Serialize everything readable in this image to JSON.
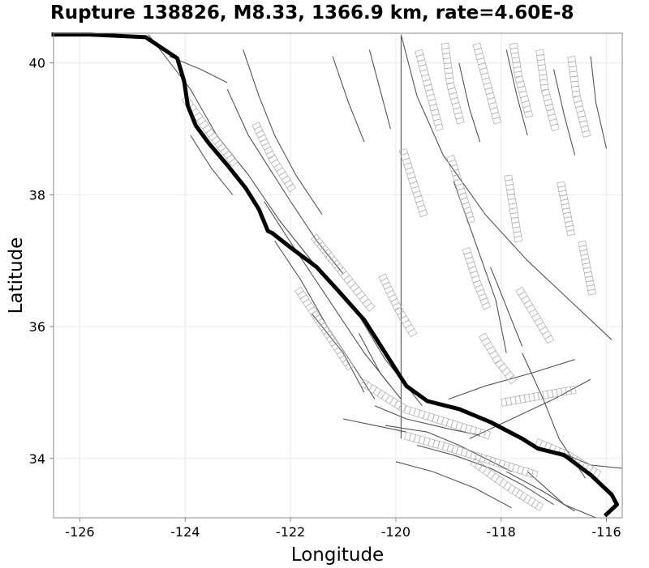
{
  "chart_data": {
    "type": "map",
    "title": "Rupture 138826, M8.33, 1366.9 km, rate=4.60E-8",
    "xlabel": "Longitude",
    "ylabel": "Latitude",
    "xlim": [
      -126.5,
      -115.7
    ],
    "ylim": [
      33.1,
      40.45
    ],
    "x_ticks": [
      -126,
      -124,
      -122,
      -120,
      -118,
      -116
    ],
    "y_ticks": [
      34,
      36,
      38,
      40
    ],
    "grid": true,
    "rupture_color": "#000000",
    "fault_color": "#555555",
    "rupture_trace": [
      [
        -126.5,
        40.43
      ],
      [
        -125.8,
        40.43
      ],
      [
        -124.75,
        40.39
      ],
      [
        -124.15,
        40.07
      ],
      [
        -124.02,
        39.72
      ],
      [
        -123.95,
        39.35
      ],
      [
        -123.8,
        39.05
      ],
      [
        -123.55,
        38.78
      ],
      [
        -123.2,
        38.45
      ],
      [
        -122.85,
        38.1
      ],
      [
        -122.6,
        37.78
      ],
      [
        -122.43,
        37.45
      ],
      [
        -122.35,
        37.42
      ],
      [
        -122.0,
        37.2
      ],
      [
        -121.5,
        36.9
      ],
      [
        -121.1,
        36.55
      ],
      [
        -120.6,
        36.1
      ],
      [
        -120.2,
        35.6
      ],
      [
        -119.8,
        35.1
      ],
      [
        -119.4,
        34.87
      ],
      [
        -118.8,
        34.75
      ],
      [
        -118.2,
        34.55
      ],
      [
        -117.6,
        34.3
      ],
      [
        -117.3,
        34.15
      ],
      [
        -116.8,
        34.05
      ],
      [
        -116.3,
        33.75
      ],
      [
        -115.9,
        33.45
      ],
      [
        -115.8,
        33.3
      ],
      [
        -116.0,
        33.15
      ]
    ],
    "faults": [
      [
        [
          -124.7,
          40.43
        ],
        [
          -123.9,
          39.6
        ],
        [
          -123.4,
          38.9
        ],
        [
          -122.8,
          38.3
        ],
        [
          -122.2,
          37.6
        ],
        [
          -121.6,
          37.0
        ],
        [
          -120.8,
          36.3
        ],
        [
          -120.2,
          35.5
        ],
        [
          -119.5,
          34.8
        ]
      ],
      [
        [
          -123.2,
          39.6
        ],
        [
          -122.8,
          38.9
        ],
        [
          -122.4,
          38.4
        ],
        [
          -122.0,
          37.9
        ],
        [
          -121.5,
          37.3
        ],
        [
          -121.0,
          36.8
        ]
      ],
      [
        [
          -122.9,
          40.2
        ],
        [
          -122.6,
          39.5
        ],
        [
          -122.3,
          38.9
        ],
        [
          -121.9,
          38.3
        ],
        [
          -121.4,
          37.7
        ]
      ],
      [
        [
          -122.5,
          37.9
        ],
        [
          -122.1,
          37.4
        ],
        [
          -121.6,
          36.8
        ],
        [
          -121.1,
          36.2
        ],
        [
          -120.6,
          35.6
        ],
        [
          -120.1,
          35.1
        ]
      ],
      [
        [
          -122.3,
          37.3
        ],
        [
          -121.8,
          36.7
        ],
        [
          -121.3,
          36.0
        ],
        [
          -120.8,
          35.4
        ],
        [
          -120.4,
          34.9
        ]
      ],
      [
        [
          -119.9,
          40.43
        ],
        [
          -119.6,
          39.5
        ],
        [
          -119.1,
          38.6
        ],
        [
          -118.3,
          37.7
        ],
        [
          -117.5,
          37.0
        ],
        [
          -116.7,
          36.4
        ],
        [
          -115.9,
          35.8
        ]
      ],
      [
        [
          -119.9,
          40.4
        ],
        [
          -119.9,
          34.3
        ]
      ],
      [
        [
          -118.9,
          38.2
        ],
        [
          -118.5,
          37.3
        ],
        [
          -118.1,
          36.4
        ],
        [
          -117.9,
          35.6
        ]
      ],
      [
        [
          -119.0,
          34.9
        ],
        [
          -118.3,
          35.1
        ],
        [
          -117.4,
          35.3
        ],
        [
          -116.6,
          35.5
        ]
      ],
      [
        [
          -118.6,
          34.3
        ],
        [
          -117.8,
          34.6
        ],
        [
          -117.0,
          34.9
        ],
        [
          -116.3,
          35.2
        ]
      ],
      [
        [
          -117.6,
          35.6
        ],
        [
          -117.2,
          34.9
        ],
        [
          -116.9,
          34.3
        ],
        [
          -116.4,
          33.7
        ]
      ],
      [
        [
          -120.2,
          34.5
        ],
        [
          -119.4,
          34.4
        ],
        [
          -118.8,
          34.2
        ],
        [
          -118.3,
          34.0
        ],
        [
          -117.8,
          33.8
        ]
      ],
      [
        [
          -120.4,
          34.8
        ],
        [
          -119.8,
          34.6
        ],
        [
          -119.0,
          34.45
        ],
        [
          -118.4,
          34.35
        ]
      ],
      [
        [
          -119.6,
          34.2
        ],
        [
          -118.9,
          34.05
        ],
        [
          -118.2,
          33.85
        ],
        [
          -117.6,
          33.6
        ],
        [
          -117.0,
          33.3
        ]
      ],
      [
        [
          -120.0,
          33.95
        ],
        [
          -119.3,
          33.8
        ],
        [
          -118.5,
          33.55
        ],
        [
          -117.8,
          33.25
        ]
      ],
      [
        [
          -117.9,
          33.8
        ],
        [
          -117.2,
          33.5
        ],
        [
          -116.6,
          33.2
        ]
      ],
      [
        [
          -116.9,
          34.1
        ],
        [
          -116.3,
          33.9
        ],
        [
          -115.7,
          33.85
        ]
      ],
      [
        [
          -117.5,
          33.8
        ],
        [
          -116.8,
          33.3
        ],
        [
          -116.2,
          33.1
        ]
      ],
      [
        [
          -124.3,
          40.1
        ],
        [
          -123.7,
          39.9
        ],
        [
          -123.2,
          39.7
        ]
      ],
      [
        [
          -121.2,
          40.1
        ],
        [
          -120.9,
          39.4
        ],
        [
          -120.6,
          38.8
        ]
      ],
      [
        [
          -120.5,
          40.2
        ],
        [
          -120.3,
          39.6
        ],
        [
          -120.1,
          39.0
        ]
      ],
      [
        [
          -118.8,
          40.0
        ],
        [
          -118.6,
          39.3
        ],
        [
          -118.4,
          38.8
        ]
      ],
      [
        [
          -117.9,
          40.2
        ],
        [
          -117.7,
          39.5
        ],
        [
          -117.5,
          38.9
        ]
      ],
      [
        [
          -117.0,
          39.9
        ],
        [
          -116.8,
          39.2
        ],
        [
          -116.6,
          38.6
        ]
      ],
      [
        [
          -116.3,
          40.1
        ],
        [
          -116.2,
          39.4
        ],
        [
          -116.0,
          38.7
        ]
      ],
      [
        [
          -118.2,
          36.9
        ],
        [
          -117.9,
          36.3
        ],
        [
          -117.6,
          35.7
        ]
      ],
      [
        [
          -121.6,
          36.2
        ],
        [
          -121.0,
          35.6
        ],
        [
          -120.6,
          35.0
        ]
      ],
      [
        [
          -120.7,
          35.9
        ],
        [
          -120.3,
          35.3
        ],
        [
          -119.9,
          34.9
        ]
      ],
      [
        [
          -121.0,
          34.6
        ],
        [
          -120.4,
          34.5
        ],
        [
          -119.8,
          34.4
        ]
      ],
      [
        [
          -123.9,
          38.9
        ],
        [
          -123.5,
          38.4
        ],
        [
          -123.1,
          38.0
        ]
      ]
    ],
    "fault_ladders": [
      [
        [
          -123.95,
          39.5
        ],
        [
          -123.5,
          39.0
        ],
        [
          -123.0,
          38.5
        ]
      ],
      [
        [
          -122.6,
          39.1
        ],
        [
          -122.3,
          38.6
        ],
        [
          -121.9,
          38.1
        ]
      ],
      [
        [
          -121.5,
          37.4
        ],
        [
          -121.0,
          36.9
        ],
        [
          -120.4,
          36.3
        ]
      ],
      [
        [
          -120.6,
          35.2
        ],
        [
          -119.8,
          34.8
        ],
        [
          -119.0,
          34.6
        ],
        [
          -118.2,
          34.4
        ]
      ],
      [
        [
          -119.8,
          34.4
        ],
        [
          -118.9,
          34.2
        ],
        [
          -118.1,
          34.0
        ],
        [
          -117.3,
          33.8
        ]
      ],
      [
        [
          -118.5,
          34.0
        ],
        [
          -117.8,
          33.6
        ],
        [
          -117.2,
          33.3
        ]
      ],
      [
        [
          -117.3,
          34.3
        ],
        [
          -116.7,
          34.1
        ],
        [
          -116.1,
          33.8
        ]
      ],
      [
        [
          -119.5,
          40.2
        ],
        [
          -119.3,
          39.6
        ],
        [
          -119.1,
          39.0
        ]
      ],
      [
        [
          -119.0,
          40.3
        ],
        [
          -118.9,
          39.7
        ],
        [
          -118.7,
          39.1
        ]
      ],
      [
        [
          -118.4,
          40.3
        ],
        [
          -118.2,
          39.7
        ],
        [
          -118.0,
          39.1
        ]
      ],
      [
        [
          -117.7,
          40.3
        ],
        [
          -117.6,
          39.8
        ],
        [
          -117.4,
          39.2
        ]
      ],
      [
        [
          -117.2,
          40.2
        ],
        [
          -117.1,
          39.6
        ],
        [
          -116.9,
          39.0
        ]
      ],
      [
        [
          -116.6,
          40.1
        ],
        [
          -116.5,
          39.5
        ],
        [
          -116.3,
          38.9
        ]
      ],
      [
        [
          -119.8,
          38.7
        ],
        [
          -119.6,
          38.2
        ],
        [
          -119.4,
          37.7
        ]
      ],
      [
        [
          -118.9,
          38.6
        ],
        [
          -118.7,
          38.1
        ],
        [
          -118.5,
          37.6
        ]
      ],
      [
        [
          -117.8,
          38.3
        ],
        [
          -117.7,
          37.8
        ],
        [
          -117.6,
          37.3
        ]
      ],
      [
        [
          -116.8,
          38.2
        ],
        [
          -116.7,
          37.8
        ],
        [
          -116.6,
          37.4
        ]
      ],
      [
        [
          -117.6,
          36.6
        ],
        [
          -117.3,
          36.2
        ],
        [
          -117.0,
          35.8
        ]
      ],
      [
        [
          -118.3,
          35.9
        ],
        [
          -118.0,
          35.5
        ],
        [
          -117.7,
          35.2
        ]
      ],
      [
        [
          -121.8,
          36.6
        ],
        [
          -121.3,
          36.0
        ],
        [
          -120.8,
          35.4
        ]
      ],
      [
        [
          -120.2,
          36.8
        ],
        [
          -119.9,
          36.3
        ],
        [
          -119.6,
          35.9
        ]
      ],
      [
        [
          -118.6,
          37.2
        ],
        [
          -118.4,
          36.7
        ],
        [
          -118.2,
          36.3
        ]
      ],
      [
        [
          -116.4,
          37.3
        ],
        [
          -116.3,
          36.9
        ],
        [
          -116.2,
          36.5
        ]
      ],
      [
        [
          -118.0,
          34.9
        ],
        [
          -117.3,
          35.0
        ],
        [
          -116.6,
          35.1
        ]
      ]
    ]
  }
}
